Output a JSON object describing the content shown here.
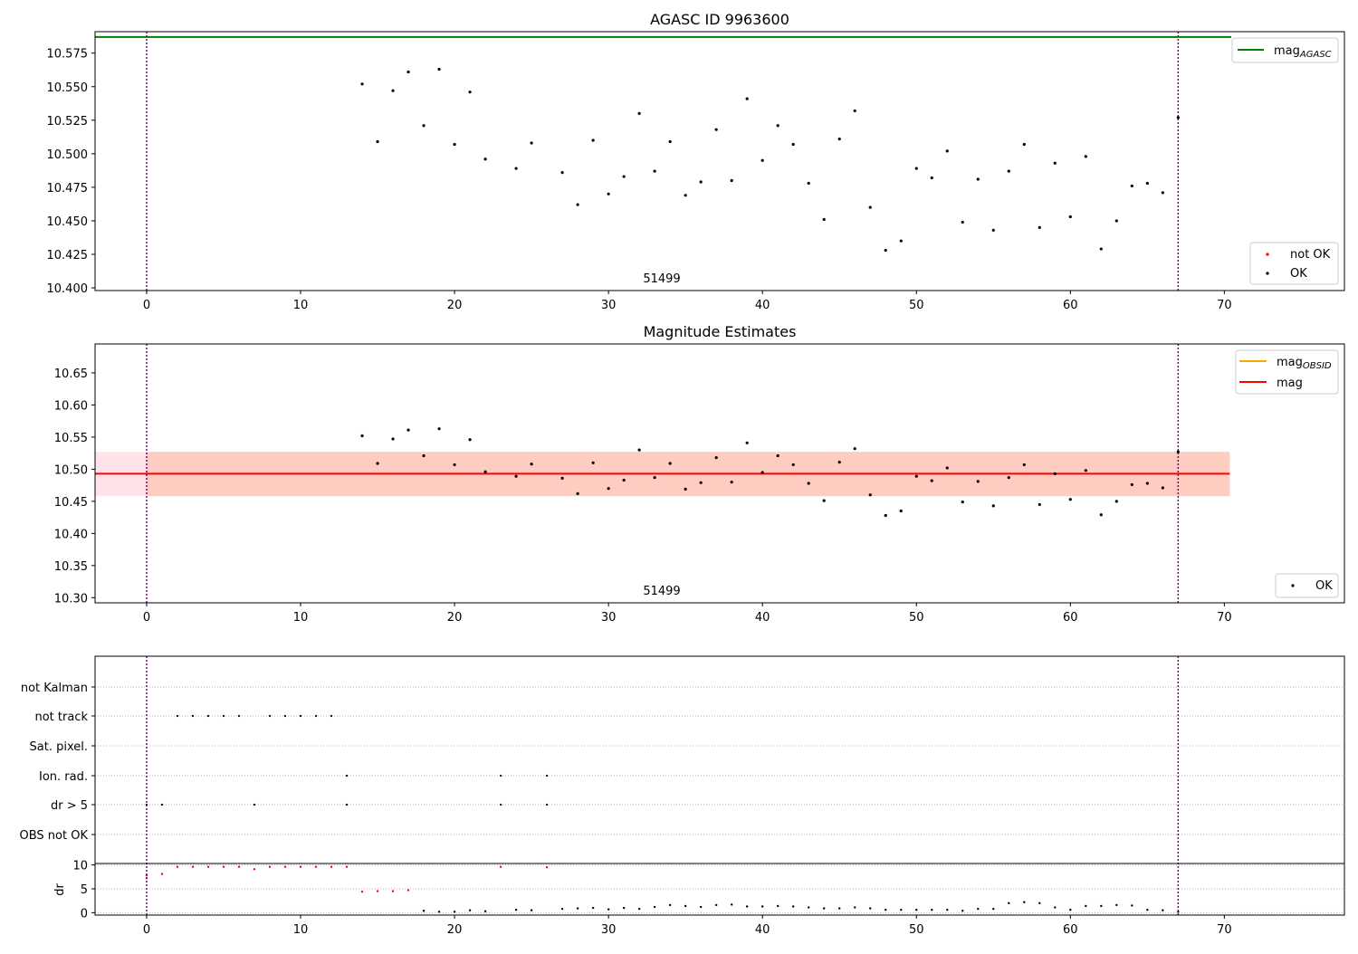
{
  "chart_data": [
    {
      "type": "scatter",
      "title": "AGASC ID 9963600",
      "xlim": [
        -3.35,
        77.8
      ],
      "ylim": [
        10.398,
        10.591
      ],
      "xticks": [
        "0",
        "10",
        "20",
        "30",
        "40",
        "50",
        "60",
        "70"
      ],
      "yticks": [
        "10.400",
        "10.425",
        "10.450",
        "10.475",
        "10.500",
        "10.525",
        "10.550",
        "10.575"
      ],
      "annotation": {
        "text": "51499",
        "x": 33.5
      },
      "vlines": [
        0,
        67
      ],
      "hlines": [
        {
          "name": "mag_AGASC",
          "y": 10.587,
          "color": "#008000"
        }
      ],
      "legend_upper": {
        "placement": "top-right",
        "entries": [
          {
            "label": "mag",
            "sub": "AGASC",
            "color": "#008000",
            "kind": "line"
          }
        ]
      },
      "legend_lower": {
        "placement": "bottom-right",
        "entries": [
          {
            "label": "not OK",
            "color": "#ff0000",
            "kind": "dot"
          },
          {
            "label": "OK",
            "color": "#000000",
            "kind": "dot"
          }
        ]
      },
      "colors": {
        "ok": "#000000",
        "not_ok": "#ff0000",
        "vline": "#800080"
      }
    },
    {
      "type": "scatter",
      "title": "Magnitude Estimates",
      "xlim": [
        -3.35,
        77.8
      ],
      "ylim": [
        10.292,
        10.695
      ],
      "xticks": [
        "0",
        "10",
        "20",
        "30",
        "40",
        "50",
        "60",
        "70"
      ],
      "yticks": [
        "10.30",
        "10.35",
        "10.40",
        "10.45",
        "10.50",
        "10.55",
        "10.60",
        "10.65"
      ],
      "annotation": {
        "text": "51499",
        "x": 33.5
      },
      "vlines": [
        0,
        67
      ],
      "mag": 10.493,
      "mag_band": [
        10.458,
        10.527
      ],
      "band_xrange": [
        -3.35,
        70.35
      ],
      "obsid_band_xrange": [
        0,
        70.35
      ],
      "legend_upper": {
        "placement": "top-right",
        "entries": [
          {
            "label": "mag",
            "sub": "OBSID",
            "color": "#ffa500",
            "kind": "line"
          },
          {
            "label": "mag",
            "color": "#ff0000",
            "kind": "line"
          }
        ]
      },
      "legend_lower": {
        "placement": "bottom-right",
        "entries": [
          {
            "label": "OK",
            "color": "#000000",
            "kind": "dot"
          }
        ]
      },
      "colors": {
        "band_pink": "#ffc0cb",
        "band_orange": "#ffa07a",
        "mag_line": "#ff0000"
      }
    },
    {
      "type": "scatter",
      "xlim": [
        -3.35,
        77.8
      ],
      "xticks": [
        "0",
        "10",
        "20",
        "30",
        "40",
        "50",
        "60",
        "70"
      ],
      "flag_categories": [
        "not Kalman",
        "not track",
        "Sat. pixel.",
        "Ion. rad.",
        "dr > 5",
        "OBS not OK"
      ],
      "flags": {
        "not track": [
          2,
          3,
          4,
          5,
          6,
          8,
          9,
          10,
          11,
          12
        ],
        "Ion. rad.": [
          13,
          23,
          26
        ],
        "dr > 5": [
          0,
          1,
          7,
          13,
          23,
          26
        ]
      },
      "vlines": [
        0,
        67
      ],
      "dr_axis": {
        "ylabel": "dr",
        "ylim": [
          -0.5,
          10.3
        ],
        "yticks": [
          "0",
          "5",
          "10"
        ]
      },
      "dr_not_ok": [
        [
          0,
          7.2
        ],
        [
          0,
          7.8
        ],
        [
          1,
          8.1
        ],
        [
          2,
          9.6
        ],
        [
          3,
          9.6
        ],
        [
          4,
          9.6
        ],
        [
          5,
          9.6
        ],
        [
          6,
          9.6
        ],
        [
          7,
          9.1
        ],
        [
          8,
          9.6
        ],
        [
          9,
          9.6
        ],
        [
          10,
          9.6
        ],
        [
          11,
          9.6
        ],
        [
          12,
          9.6
        ],
        [
          13,
          9.6
        ],
        [
          14,
          4.4
        ],
        [
          15,
          4.5
        ],
        [
          16,
          4.5
        ],
        [
          17,
          4.7
        ],
        [
          23,
          9.6
        ],
        [
          26,
          9.5
        ]
      ],
      "dr_ok": [
        [
          18,
          0.4
        ],
        [
          19,
          0.2
        ],
        [
          20,
          0.2
        ],
        [
          21,
          0.5
        ],
        [
          22,
          0.3
        ],
        [
          24,
          0.6
        ],
        [
          25,
          0.5
        ],
        [
          27,
          0.8
        ],
        [
          28,
          0.9
        ],
        [
          29,
          1.0
        ],
        [
          30,
          0.7
        ],
        [
          31,
          1.0
        ],
        [
          32,
          0.8
        ],
        [
          33,
          1.2
        ],
        [
          34,
          1.6
        ],
        [
          35,
          1.4
        ],
        [
          36,
          1.2
        ],
        [
          37,
          1.6
        ],
        [
          38,
          1.7
        ],
        [
          39,
          1.3
        ],
        [
          40,
          1.3
        ],
        [
          41,
          1.4
        ],
        [
          42,
          1.3
        ],
        [
          43,
          1.1
        ],
        [
          44,
          0.9
        ],
        [
          45,
          0.9
        ],
        [
          46,
          1.1
        ],
        [
          47,
          0.9
        ],
        [
          48,
          0.6
        ],
        [
          49,
          0.6
        ],
        [
          50,
          0.6
        ],
        [
          51,
          0.6
        ],
        [
          52,
          0.6
        ],
        [
          53,
          0.4
        ],
        [
          54,
          0.8
        ],
        [
          55,
          0.8
        ],
        [
          56,
          2.0
        ],
        [
          57,
          2.2
        ],
        [
          58,
          2.0
        ],
        [
          59,
          1.1
        ],
        [
          60,
          0.6
        ],
        [
          61,
          1.4
        ],
        [
          62,
          1.4
        ],
        [
          63,
          1.6
        ],
        [
          64,
          1.5
        ],
        [
          65,
          0.6
        ],
        [
          66,
          0.5
        ],
        [
          67,
          0.2
        ]
      ],
      "colors": {
        "ok": "#000000",
        "not_ok": "#ff0000",
        "grid": "#b0b0b0"
      }
    }
  ],
  "series": {
    "ok_points": [
      [
        14,
        10.552
      ],
      [
        15,
        10.509
      ],
      [
        16,
        10.547
      ],
      [
        17,
        10.561
      ],
      [
        18,
        10.521
      ],
      [
        19,
        10.563
      ],
      [
        20,
        10.507
      ],
      [
        21,
        10.546
      ],
      [
        22,
        10.496
      ],
      [
        24,
        10.489
      ],
      [
        25,
        10.508
      ],
      [
        27,
        10.486
      ],
      [
        28,
        10.462
      ],
      [
        29,
        10.51
      ],
      [
        30,
        10.47
      ],
      [
        31,
        10.483
      ],
      [
        32,
        10.53
      ],
      [
        33,
        10.487
      ],
      [
        34,
        10.509
      ],
      [
        35,
        10.469
      ],
      [
        36,
        10.479
      ],
      [
        37,
        10.518
      ],
      [
        38,
        10.48
      ],
      [
        39,
        10.541
      ],
      [
        40,
        10.495
      ],
      [
        41,
        10.521
      ],
      [
        42,
        10.507
      ],
      [
        43,
        10.478
      ],
      [
        44,
        10.451
      ],
      [
        45,
        10.511
      ],
      [
        46,
        10.532
      ],
      [
        47,
        10.46
      ],
      [
        48,
        10.428
      ],
      [
        49,
        10.435
      ],
      [
        50,
        10.489
      ],
      [
        51,
        10.482
      ],
      [
        52,
        10.502
      ],
      [
        53,
        10.449
      ],
      [
        54,
        10.481
      ],
      [
        55,
        10.443
      ],
      [
        56,
        10.487
      ],
      [
        57,
        10.507
      ],
      [
        58,
        10.445
      ],
      [
        59,
        10.493
      ],
      [
        60,
        10.453
      ],
      [
        61,
        10.498
      ],
      [
        62,
        10.429
      ],
      [
        63,
        10.45
      ],
      [
        64,
        10.476
      ],
      [
        65,
        10.478
      ],
      [
        66,
        10.471
      ],
      [
        67,
        10.527
      ]
    ]
  }
}
